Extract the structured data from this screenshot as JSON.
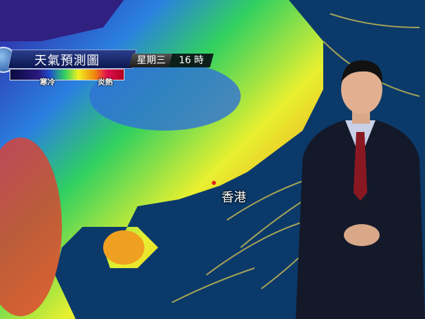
{
  "header": {
    "title": "天氣預測圖",
    "day": "星期三",
    "hour": "16 時"
  },
  "legend": {
    "cold_label": "寒冷",
    "hot_label": "炎熱",
    "colors": [
      "#0a0a40",
      "#2050d0",
      "#30d060",
      "#f0f020",
      "#f08010",
      "#e01050"
    ]
  },
  "map": {
    "city_label": "香港",
    "marker_color": "#e02020",
    "sea_color": "#0b3a6a"
  }
}
